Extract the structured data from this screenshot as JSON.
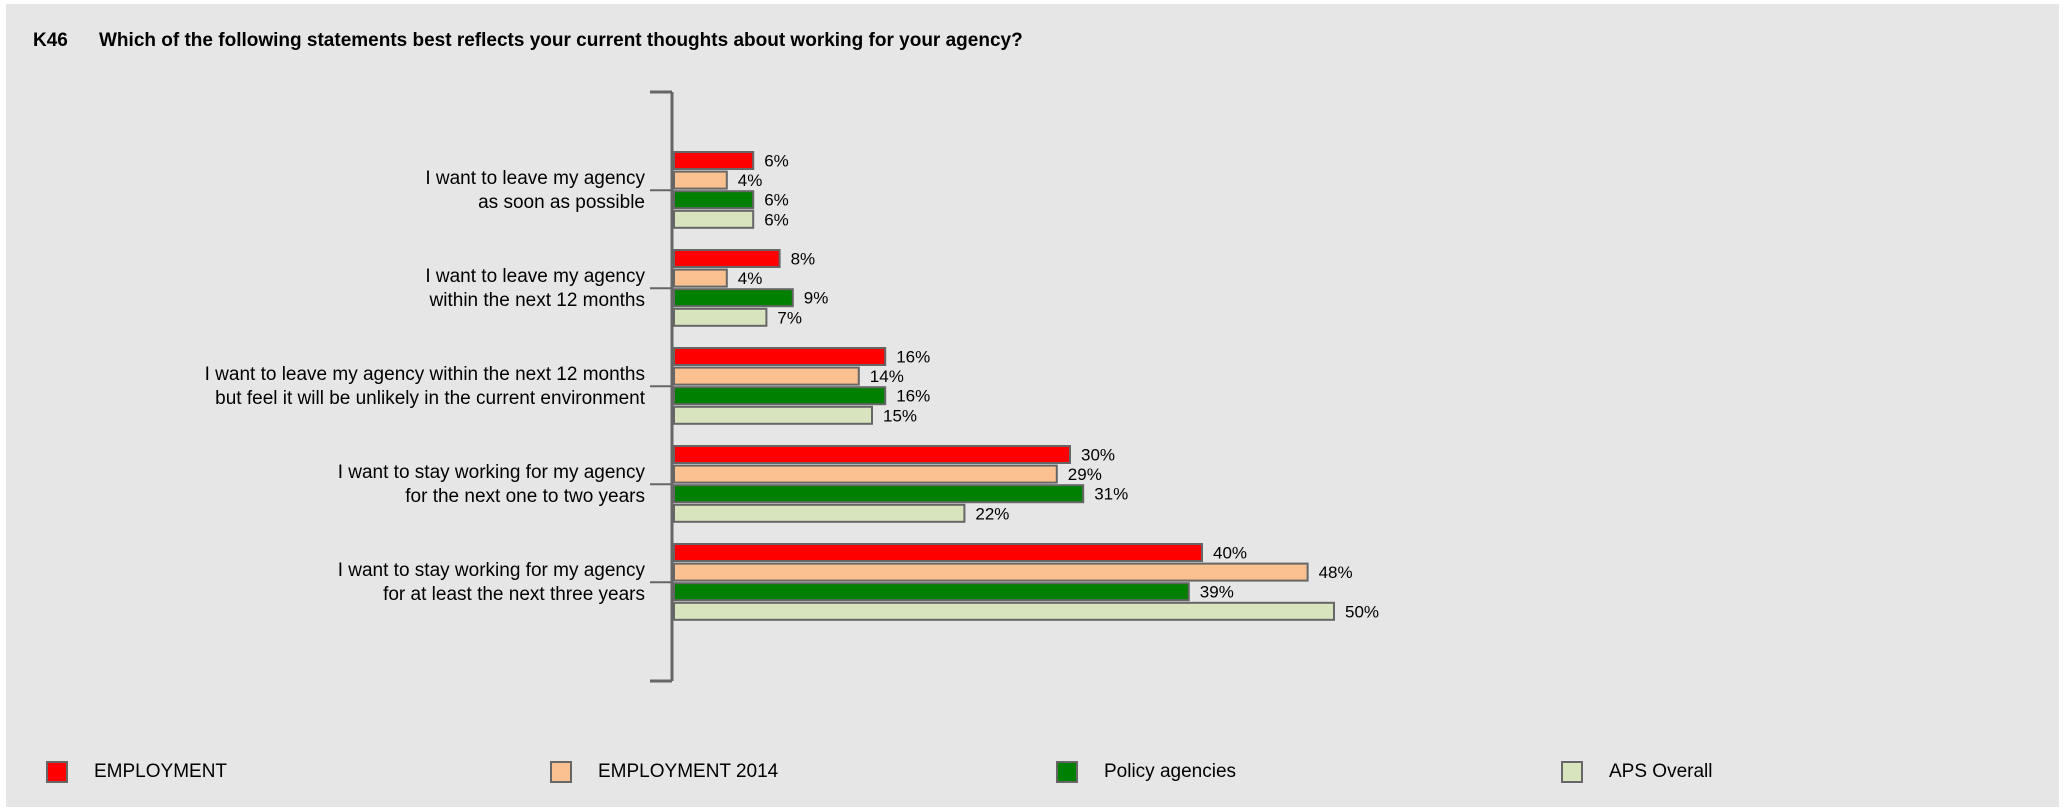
{
  "question": {
    "id": "K46",
    "text": "Which of the following statements best reflects your current thoughts about working for your agency?"
  },
  "chart_data": {
    "type": "bar",
    "orientation": "horizontal",
    "categories": [
      [
        "I want to leave my agency",
        "as soon as possible"
      ],
      [
        "I want to leave my agency",
        "within the next 12 months"
      ],
      [
        "I want to leave my agency within the next 12 months",
        "but feel it will be unlikely in the current environment"
      ],
      [
        "I want to stay working for my agency",
        "for the next one to two years"
      ],
      [
        "I want to stay working for my agency",
        "for at least the next three years"
      ]
    ],
    "series": [
      {
        "name": "EMPLOYMENT",
        "color": "#ff0000",
        "values": [
          6,
          8,
          16,
          30,
          40
        ]
      },
      {
        "name": "EMPLOYMENT 2014",
        "color": "#fac090",
        "values": [
          4,
          4,
          14,
          29,
          48
        ]
      },
      {
        "name": "Policy agencies",
        "color": "#008000",
        "values": [
          6,
          9,
          16,
          31,
          39
        ]
      },
      {
        "name": "APS Overall",
        "color": "#d7e4bd",
        "values": [
          6,
          7,
          15,
          22,
          50
        ]
      }
    ],
    "value_suffix": "%",
    "xlim": [
      0,
      100
    ],
    "grid": false,
    "legend_position": "bottom"
  }
}
